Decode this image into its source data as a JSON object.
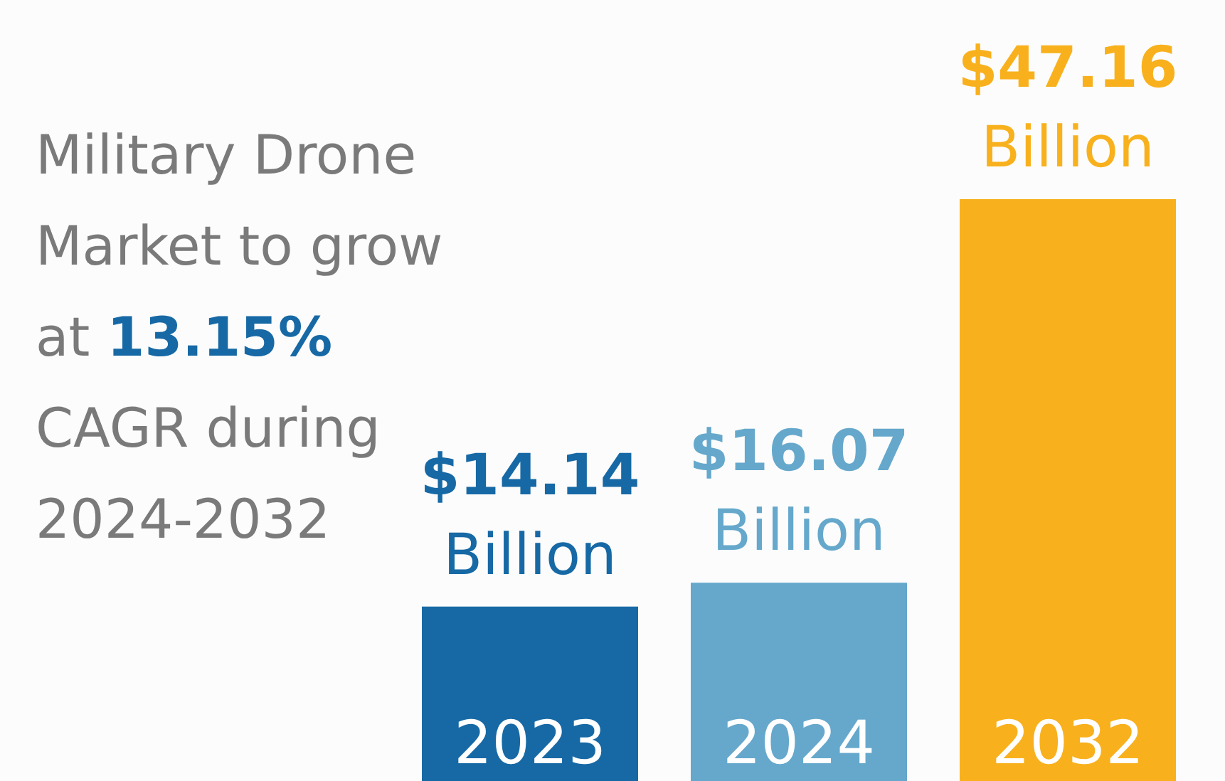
{
  "chart_data": {
    "type": "bar",
    "title": "Military Drone Market to grow at 13.15% CAGR during 2024-2032",
    "categories": [
      "2023",
      "2024",
      "2032"
    ],
    "values": [
      14.14,
      16.07,
      47.16
    ],
    "colors": [
      "#1769a5",
      "#65a8cc",
      "#f8b11d"
    ],
    "value_labels": [
      "$14.14 Billion",
      "$16.07 Billion",
      "$47.16 Billion"
    ]
  }
}
